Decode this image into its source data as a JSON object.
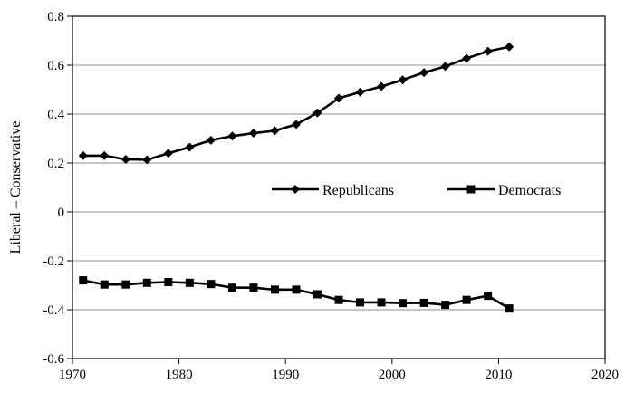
{
  "chart_data": {
    "type": "line",
    "title": "",
    "xlabel": "",
    "ylabel": "Liberal – Conservative",
    "xlim": [
      1970,
      2020
    ],
    "ylim": [
      -0.6,
      0.8
    ],
    "x_ticks": [
      1970,
      1980,
      1990,
      2000,
      2010,
      2020
    ],
    "x_tick_labels": [
      "1970",
      "1980",
      "1990",
      "2000",
      "2010",
      "2020"
    ],
    "y_ticks": [
      -0.6,
      -0.4,
      -0.2,
      0,
      0.2,
      0.4,
      0.6,
      0.8
    ],
    "y_tick_labels": [
      "-0.6",
      "-0.4",
      "-0.2",
      "0",
      "0.2",
      "0.4",
      "0.6",
      "0.8"
    ],
    "grid": "horizontal",
    "legend_position": "center-right",
    "x": [
      1971,
      1973,
      1975,
      1977,
      1979,
      1981,
      1983,
      1985,
      1987,
      1989,
      1991,
      1993,
      1995,
      1997,
      1999,
      2001,
      2003,
      2005,
      2007,
      2009,
      2011
    ],
    "series": [
      {
        "name": "Republicans",
        "marker": "diamond",
        "color": "#000000",
        "values": [
          0.23,
          0.23,
          0.215,
          0.213,
          0.24,
          0.265,
          0.293,
          0.31,
          0.322,
          0.332,
          0.358,
          0.405,
          0.465,
          0.49,
          0.513,
          0.54,
          0.57,
          0.595,
          0.628,
          0.657,
          0.675
        ]
      },
      {
        "name": "Democrats",
        "marker": "square",
        "color": "#000000",
        "values": [
          -0.28,
          -0.297,
          -0.297,
          -0.29,
          -0.287,
          -0.29,
          -0.295,
          -0.31,
          -0.31,
          -0.318,
          -0.318,
          -0.337,
          -0.36,
          -0.37,
          -0.37,
          -0.373,
          -0.372,
          -0.38,
          -0.36,
          -0.343,
          -0.395
        ]
      }
    ]
  }
}
